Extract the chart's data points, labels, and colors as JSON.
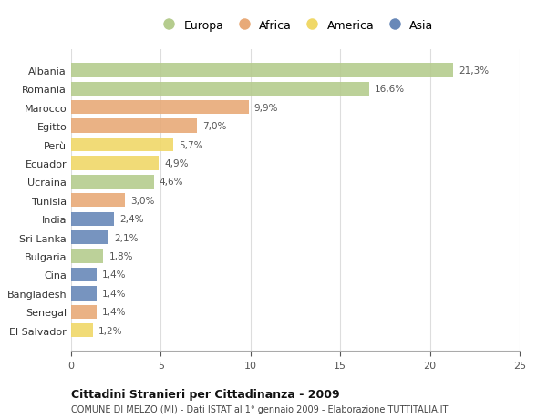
{
  "categories": [
    "Albania",
    "Romania",
    "Marocco",
    "Egitto",
    "Perù",
    "Ecuador",
    "Ucraina",
    "Tunisia",
    "India",
    "Sri Lanka",
    "Bulgaria",
    "Cina",
    "Bangladesh",
    "Senegal",
    "El Salvador"
  ],
  "values": [
    21.3,
    16.6,
    9.9,
    7.0,
    5.7,
    4.9,
    4.6,
    3.0,
    2.4,
    2.1,
    1.8,
    1.4,
    1.4,
    1.4,
    1.2
  ],
  "labels": [
    "21,3%",
    "16,6%",
    "9,9%",
    "7,0%",
    "5,7%",
    "4,9%",
    "4,6%",
    "3,0%",
    "2,4%",
    "2,1%",
    "1,8%",
    "1,4%",
    "1,4%",
    "1,4%",
    "1,2%"
  ],
  "continent": [
    "Europa",
    "Europa",
    "Africa",
    "Africa",
    "America",
    "America",
    "Europa",
    "Africa",
    "Asia",
    "Asia",
    "Europa",
    "Asia",
    "Asia",
    "Africa",
    "America"
  ],
  "colors": {
    "Europa": "#b5cc8e",
    "Africa": "#e8aa78",
    "America": "#f0d868",
    "Asia": "#6888b8"
  },
  "xlim": [
    0,
    25
  ],
  "xticks": [
    0,
    5,
    10,
    15,
    20,
    25
  ],
  "title": "Cittadini Stranieri per Cittadinanza - 2009",
  "subtitle": "COMUNE DI MELZO (MI) - Dati ISTAT al 1° gennaio 2009 - Elaborazione TUTTITALIA.IT",
  "background_color": "#ffffff",
  "bar_height": 0.75,
  "grid_color": "#dddddd",
  "legend_order": [
    "Europa",
    "Africa",
    "America",
    "Asia"
  ]
}
